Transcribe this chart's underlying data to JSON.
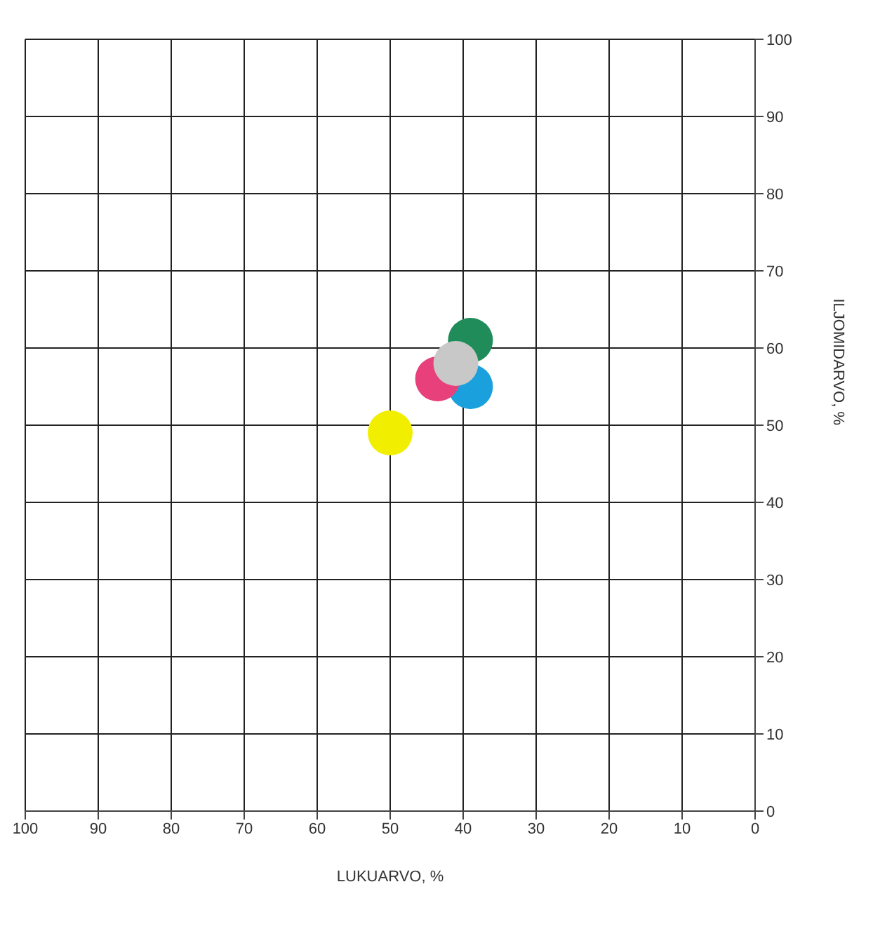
{
  "chart_data": {
    "type": "scatter",
    "xlabel": "LUKUARVO, %",
    "ylabel": "ILJOMIDARVO, %",
    "x": [
      50,
      39,
      39,
      43.5,
      41
    ],
    "values": [
      49,
      61,
      55,
      56,
      58
    ],
    "colors": [
      "#f2ee00",
      "#1f8c5a",
      "#1aa0dc",
      "#e8407a",
      "#c8c8c8"
    ],
    "xlim": [
      100,
      0
    ],
    "ylim": [
      0,
      100
    ],
    "xticks": [
      100,
      90,
      80,
      70,
      60,
      50,
      40,
      30,
      20,
      10,
      0
    ],
    "yticks": [
      0,
      10,
      20,
      30,
      40,
      50,
      60,
      70,
      80,
      90,
      100
    ],
    "grid": true,
    "marker": "circle"
  }
}
